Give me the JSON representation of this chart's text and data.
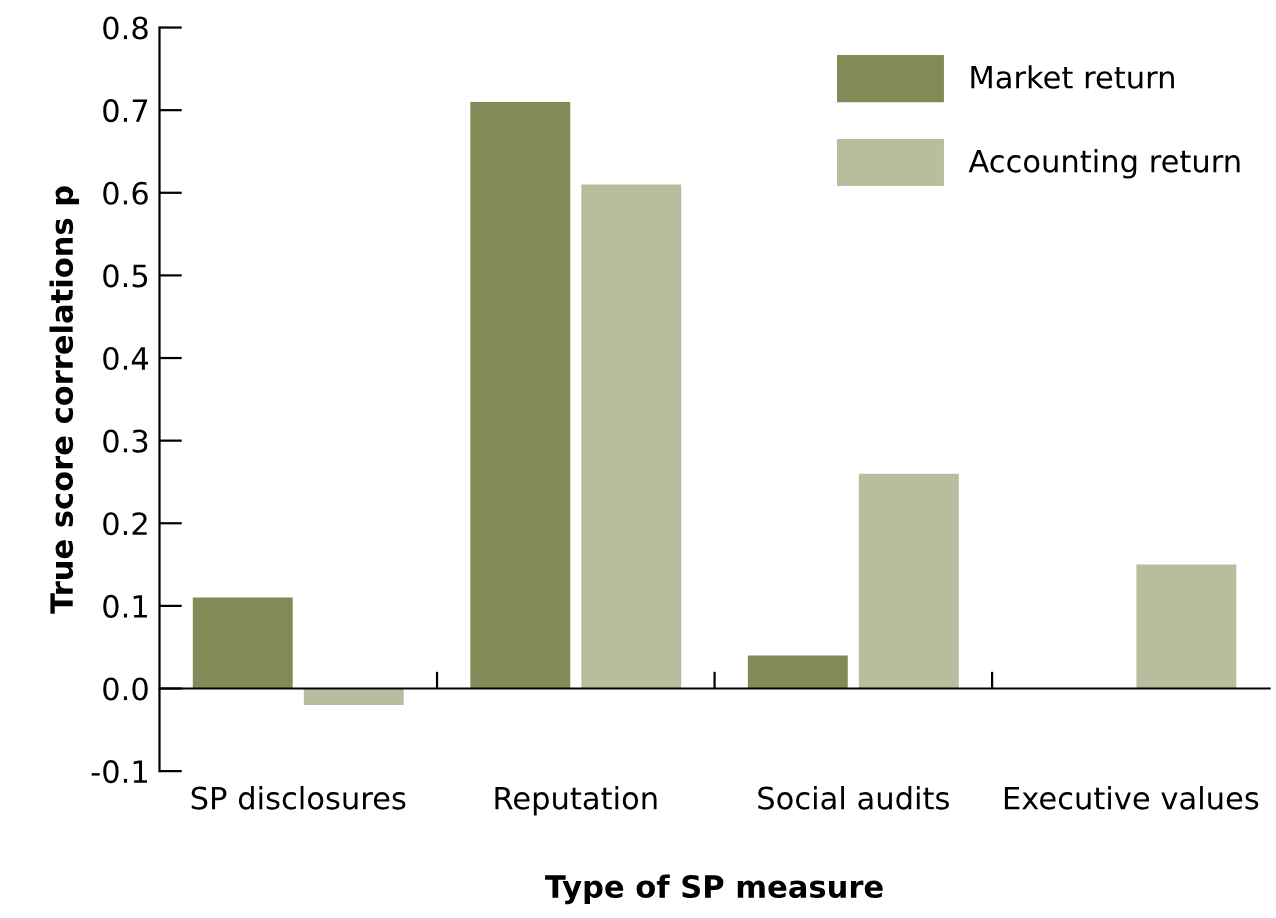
{
  "chart_data": {
    "type": "bar",
    "xlabel": "Type of SP measure",
    "ylabel": "True score correlations p",
    "categories": [
      "SP disclosures",
      "Reputation",
      "Social audits",
      "Executive values"
    ],
    "series": [
      {
        "name": "Market return",
        "color": "#828a58",
        "values": [
          0.11,
          0.71,
          0.04,
          0.0
        ]
      },
      {
        "name": "Accounting return",
        "color": "#b9bd9d",
        "values": [
          -0.02,
          0.61,
          0.26,
          0.15
        ]
      }
    ],
    "ylim": [
      -0.1,
      0.8
    ],
    "yticks": [
      {
        "value": -0.1,
        "label": "-0.1"
      },
      {
        "value": 0,
        "label": "0.0"
      },
      0.1,
      0.2,
      0.3,
      0.4,
      0.5,
      0.6,
      0.7,
      0.8
    ],
    "legend": "top right"
  }
}
